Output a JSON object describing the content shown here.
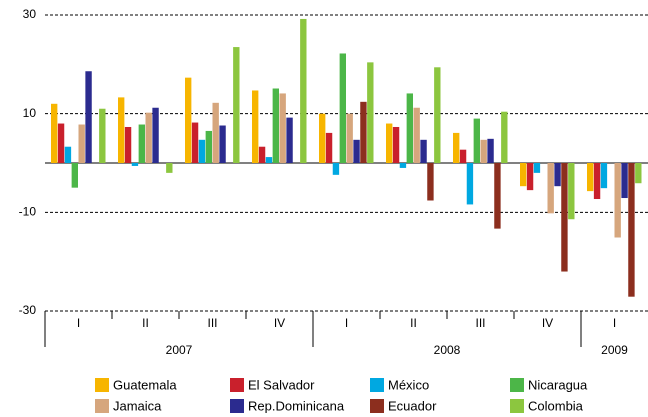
{
  "chart_data": {
    "type": "bar",
    "categories": [
      "I",
      "II",
      "III",
      "IV",
      "I",
      "II",
      "III",
      "IV",
      "I"
    ],
    "groups": [
      {
        "name": "2007",
        "size": 4
      },
      {
        "name": "2008",
        "size": 4
      },
      {
        "name": "2009",
        "size": 1
      }
    ],
    "series": [
      {
        "name": "Guatemala",
        "color": "#f7b500",
        "values": [
          12,
          13.3,
          17.3,
          14.7,
          10,
          8,
          6.1,
          -4.7,
          -5.7
        ]
      },
      {
        "name": "El Salvador",
        "color": "#c9202c",
        "values": [
          8,
          7.3,
          8.2,
          3.3,
          6.1,
          7.3,
          2.7,
          -5.5,
          -7.3
        ]
      },
      {
        "name": "México",
        "color": "#00a8e1",
        "values": [
          3.3,
          -0.6,
          4.7,
          1.2,
          -2.4,
          -1,
          -8.4,
          -2,
          -5.1
        ]
      },
      {
        "name": "Nicaragua",
        "color": "#4cb648",
        "values": [
          -5,
          7.8,
          6.5,
          15.1,
          22.2,
          14.1,
          9,
          null,
          null
        ]
      },
      {
        "name": "Jamaica",
        "color": "#d6a67d",
        "values": [
          7.8,
          10.2,
          12.2,
          14.1,
          10,
          11.2,
          4.7,
          -10.2,
          -15.1
        ]
      },
      {
        "name": "Rep.Dominicana",
        "color": "#2b2b8f",
        "values": [
          18.6,
          11.2,
          7.6,
          9.2,
          4.7,
          4.7,
          4.9,
          -4.7,
          -7.1
        ]
      },
      {
        "name": "Ecuador",
        "color": "#8c2e1e",
        "values": [
          null,
          null,
          null,
          null,
          12.4,
          -7.6,
          -13.3,
          -22,
          -27.1
        ]
      },
      {
        "name": "Colombia",
        "color": "#8cc63f",
        "values": [
          11,
          -2,
          23.5,
          29.2,
          20.4,
          19.4,
          10.4,
          -11.4,
          -4.1
        ]
      }
    ],
    "ylim": [
      -30,
      30
    ],
    "yticks": [
      -30,
      -10,
      10,
      30
    ],
    "grid": true
  }
}
